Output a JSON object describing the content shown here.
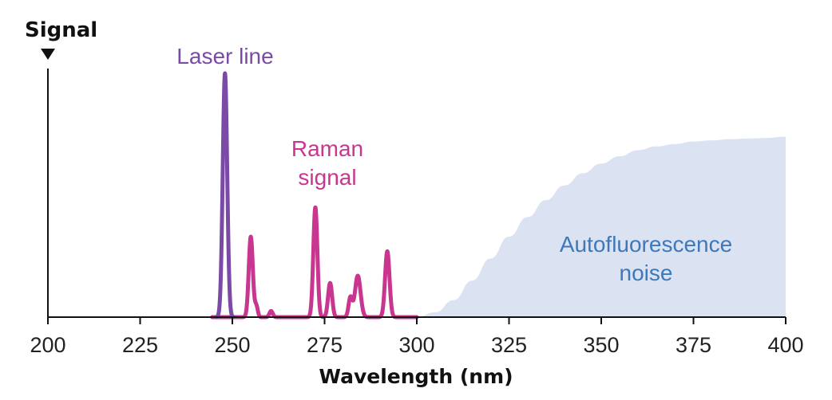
{
  "chart_data": {
    "type": "area",
    "xlabel": "Wavelength (nm)",
    "ylabel": "Signal",
    "xlim": [
      200,
      400
    ],
    "ylim": [
      0,
      1
    ],
    "xticks": [
      200,
      225,
      250,
      275,
      300,
      325,
      350,
      375,
      400
    ],
    "grid": false,
    "colors": {
      "laser": "#7b4aa6",
      "raman": "#c8368f",
      "noise_fill": "#dbe3f3",
      "noise_label": "#3f78b8",
      "axis": "#111111"
    },
    "annotations": {
      "laser": "Laser line",
      "raman_1": "Raman",
      "raman_2": "signal",
      "noise_1": "Autofluorescence",
      "noise_2": "noise"
    },
    "series": [
      {
        "kind": "laser",
        "peaks": [
          {
            "x": 248,
            "height": 1.0,
            "width": 0.6
          }
        ]
      },
      {
        "kind": "raman",
        "x_range": [
          244.5,
          300
        ],
        "peaks": [
          {
            "x": 255,
            "height": 0.33,
            "width": 0.55
          },
          {
            "x": 256.5,
            "height": 0.045,
            "width": 0.4
          },
          {
            "x": 260.5,
            "height": 0.025,
            "width": 0.45
          },
          {
            "x": 272.5,
            "height": 0.45,
            "width": 0.55
          },
          {
            "x": 276.5,
            "height": 0.14,
            "width": 0.55
          },
          {
            "x": 282,
            "height": 0.08,
            "width": 0.5
          },
          {
            "x": 284,
            "height": 0.17,
            "width": 0.75
          },
          {
            "x": 292,
            "height": 0.27,
            "width": 0.6
          }
        ]
      },
      {
        "kind": "noise",
        "x": [
          300,
          305,
          310,
          315,
          320,
          325,
          330,
          335,
          340,
          345,
          350,
          355,
          360,
          365,
          370,
          375,
          380,
          385,
          390,
          395,
          400
        ],
        "y": [
          0,
          0.02,
          0.07,
          0.15,
          0.24,
          0.33,
          0.41,
          0.48,
          0.54,
          0.59,
          0.63,
          0.66,
          0.685,
          0.7,
          0.71,
          0.72,
          0.725,
          0.73,
          0.733,
          0.735,
          0.74
        ]
      }
    ]
  }
}
